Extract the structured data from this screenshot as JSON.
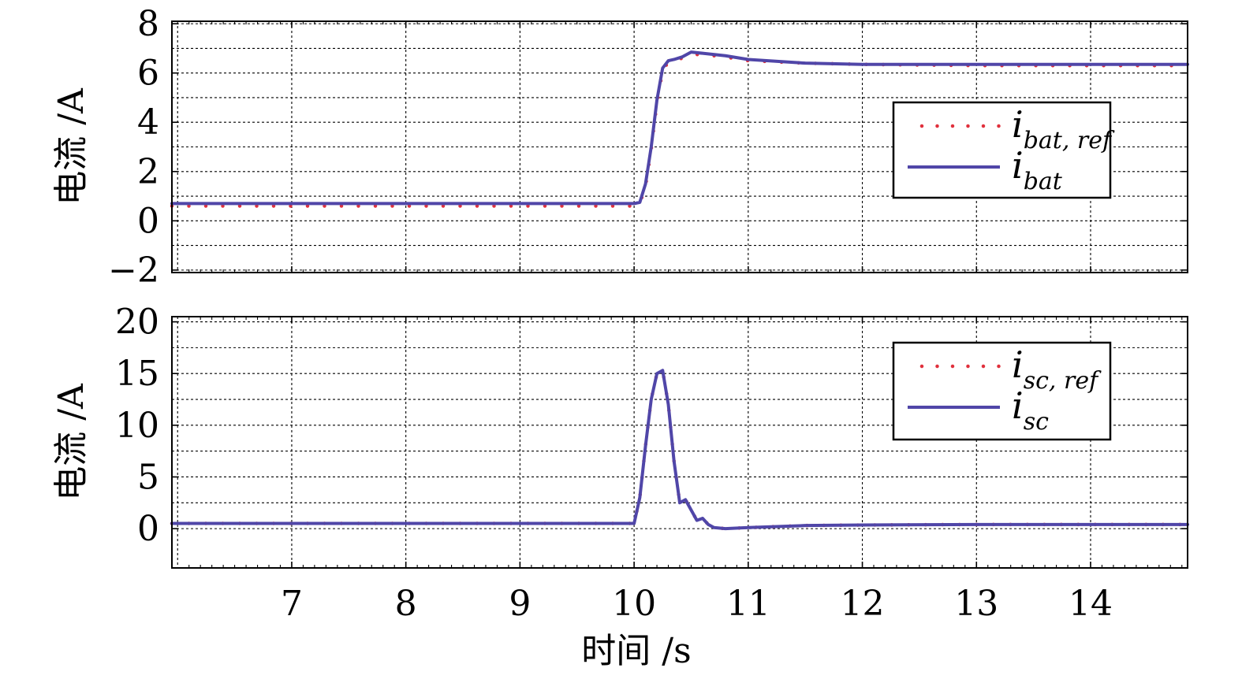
{
  "chart_data": [
    {
      "type": "line",
      "ylabel": "电流 /A",
      "xlim": [
        5.95,
        14.85
      ],
      "ylim": [
        -2.1,
        8.1
      ],
      "xticks": [
        7,
        8,
        9,
        10,
        11,
        12,
        13,
        14
      ],
      "yticks": [
        -2,
        0,
        2,
        4,
        6,
        8
      ],
      "ytick_labels": [
        "−2",
        "0",
        "2",
        "4",
        "6",
        "8"
      ],
      "grid": true,
      "legend_position": "right",
      "series": [
        {
          "name": "i_bat, ref",
          "legend_main": "i",
          "legend_sub": "bat, ref",
          "style": "dotted",
          "color": "#e0303c",
          "x": [
            5.95,
            10.0,
            10.05,
            10.1,
            10.15,
            10.2,
            10.25,
            10.3,
            10.35,
            10.42,
            10.5,
            10.6,
            10.8,
            11.0,
            11.5,
            12.0,
            13.0,
            14.85
          ],
          "y": [
            0.6,
            0.6,
            0.7,
            1.4,
            2.9,
            4.8,
            6.1,
            6.45,
            6.5,
            6.6,
            6.75,
            6.75,
            6.65,
            6.5,
            6.4,
            6.35,
            6.3,
            6.3
          ]
        },
        {
          "name": "i_bat",
          "legend_main": "i",
          "legend_sub": "bat",
          "style": "solid",
          "color": "#5046a8",
          "x": [
            5.95,
            10.0,
            10.05,
            10.1,
            10.15,
            10.2,
            10.25,
            10.3,
            10.35,
            10.42,
            10.5,
            10.6,
            10.8,
            11.0,
            11.5,
            12.0,
            13.0,
            14.85
          ],
          "y": [
            0.7,
            0.7,
            0.75,
            1.5,
            3.0,
            4.9,
            6.2,
            6.5,
            6.55,
            6.65,
            6.85,
            6.8,
            6.7,
            6.55,
            6.4,
            6.35,
            6.35,
            6.35
          ]
        }
      ]
    },
    {
      "type": "line",
      "ylabel": "电流 /A",
      "xlabel": "时间 /s",
      "xlim": [
        5.95,
        14.85
      ],
      "ylim": [
        -3.8,
        20.5
      ],
      "xticks": [
        7,
        8,
        9,
        10,
        11,
        12,
        13,
        14
      ],
      "yticks": [
        0,
        5,
        10,
        15,
        20
      ],
      "ytick_labels": [
        "0",
        "5",
        "10",
        "15",
        "20"
      ],
      "xtick_labels": [
        "7",
        "8",
        "9",
        "10",
        "11",
        "12",
        "13",
        "14"
      ],
      "grid": true,
      "legend_position": "top-right",
      "series": [
        {
          "name": "i_sc, ref",
          "legend_main": "i",
          "legend_sub": "sc, ref",
          "style": "dotted",
          "color": "#e0303c",
          "x": [
            5.95,
            10.0,
            10.05,
            10.1,
            10.15,
            10.2,
            10.25,
            10.3,
            10.35,
            10.4,
            10.45,
            10.5,
            10.55,
            10.6,
            10.65,
            10.7,
            10.8,
            11.0,
            11.5,
            12.0,
            13.0,
            14.85
          ],
          "y": [
            0.5,
            0.5,
            3.0,
            8.0,
            12.5,
            15.0,
            15.3,
            12.0,
            6.5,
            2.5,
            2.8,
            1.8,
            0.8,
            1.0,
            0.4,
            0.1,
            0.0,
            0.1,
            0.3,
            0.35,
            0.4,
            0.4
          ],
          "dot_step": 0.145
        },
        {
          "name": "i_sc",
          "legend_main": "i",
          "legend_sub": "sc",
          "style": "solid",
          "color": "#5046a8",
          "x": [
            5.95,
            10.0,
            10.05,
            10.1,
            10.15,
            10.2,
            10.25,
            10.3,
            10.35,
            10.4,
            10.45,
            10.5,
            10.55,
            10.6,
            10.65,
            10.7,
            10.8,
            11.0,
            11.5,
            12.0,
            13.0,
            14.85
          ],
          "y": [
            0.5,
            0.5,
            3.0,
            8.0,
            12.5,
            15.0,
            15.3,
            12.0,
            6.5,
            2.5,
            2.8,
            1.8,
            0.8,
            1.0,
            0.4,
            0.1,
            0.0,
            0.1,
            0.3,
            0.35,
            0.4,
            0.4
          ]
        }
      ]
    }
  ]
}
